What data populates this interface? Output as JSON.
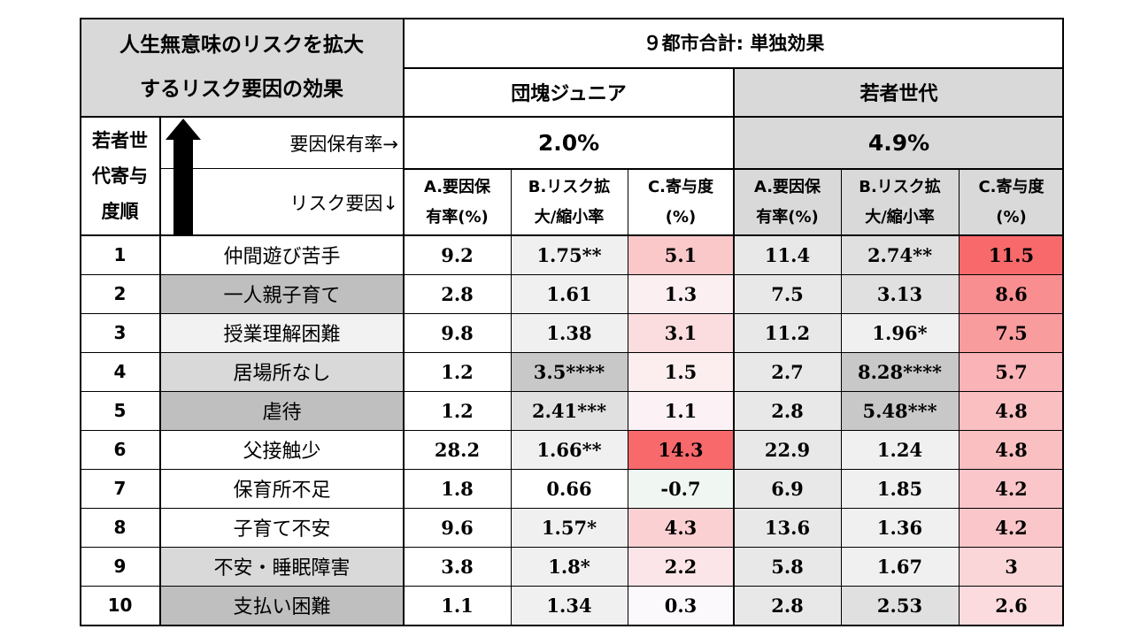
{
  "title_line1": "人生無意味のリスクを拡大",
  "title_line2": "するリスク要因の効果",
  "super_header": "９都市合計: 単独効果",
  "groups": [
    {
      "name": "団塊ジュニア",
      "prevalence": "2.0%"
    },
    {
      "name": "若者世代",
      "prevalence": "4.9%"
    }
  ],
  "rank_header_lines": [
    "若者世",
    "代寄与",
    "度順"
  ],
  "prevalence_label": "要因保有率→",
  "risk_factor_label": "リスク要因↓",
  "col_headers": [
    [
      "A.要因保",
      "有率(%)"
    ],
    [
      "B.リスク拡",
      "大/縮小率"
    ],
    [
      "C.寄与度",
      "(%)"
    ],
    [
      "A.要因保",
      "有率(%)"
    ],
    [
      "B.リスク拡",
      "大/縮小率"
    ],
    [
      "C.寄与度",
      "(%)"
    ]
  ],
  "rows": [
    {
      "rank": "1",
      "factor": "仲間遊び苦手",
      "values": [
        "9.2",
        "1.75**",
        "5.1",
        "11.4",
        "2.74**",
        "11.5"
      ]
    },
    {
      "rank": "2",
      "factor": "一人親子育て",
      "values": [
        "2.8",
        "1.61",
        "1.3",
        "7.5",
        "3.13",
        "8.6"
      ]
    },
    {
      "rank": "3",
      "factor": "授業理解困難",
      "values": [
        "9.8",
        "1.38",
        "3.1",
        "11.2",
        "1.96*",
        "7.5"
      ]
    },
    {
      "rank": "4",
      "factor": "居場所なし",
      "values": [
        "1.2",
        "3.5****",
        "1.5",
        "2.7",
        "8.28****",
        "5.7"
      ]
    },
    {
      "rank": "5",
      "factor": "虐待",
      "values": [
        "1.2",
        "2.41***",
        "1.1",
        "2.8",
        "5.48***",
        "4.8"
      ]
    },
    {
      "rank": "6",
      "factor": "父接触少",
      "values": [
        "28.2",
        "1.66**",
        "14.3",
        "22.9",
        "1.24",
        "4.8"
      ]
    },
    {
      "rank": "7",
      "factor": "保育所不足",
      "values": [
        "1.8",
        "0.66",
        "-0.7",
        "6.9",
        "1.85",
        "4.2"
      ]
    },
    {
      "rank": "8",
      "factor": "子育て不安",
      "values": [
        "9.6",
        "1.57*",
        "4.3",
        "13.6",
        "1.36",
        "4.2"
      ]
    },
    {
      "rank": "9",
      "factor": "不安・睡眠障害",
      "values": [
        "3.8",
        "1.8*",
        "2.2",
        "5.8",
        "1.67",
        "3"
      ]
    },
    {
      "rank": "10",
      "factor": "支払い困難",
      "values": [
        "1.1",
        "1.34",
        "0.3",
        "2.8",
        "2.53",
        "2.6"
      ]
    }
  ],
  "colors": {
    "factor_dark": "#bfbfbf",
    "factor_light": "#f2f2f2",
    "factor_mid": "#d9d9d9",
    "group2_header": "#d9d9d9",
    "heat_max": "#f8696b",
    "heat_min": "#fcfcff",
    "heat_negative": "#f0f7f2"
  }
}
